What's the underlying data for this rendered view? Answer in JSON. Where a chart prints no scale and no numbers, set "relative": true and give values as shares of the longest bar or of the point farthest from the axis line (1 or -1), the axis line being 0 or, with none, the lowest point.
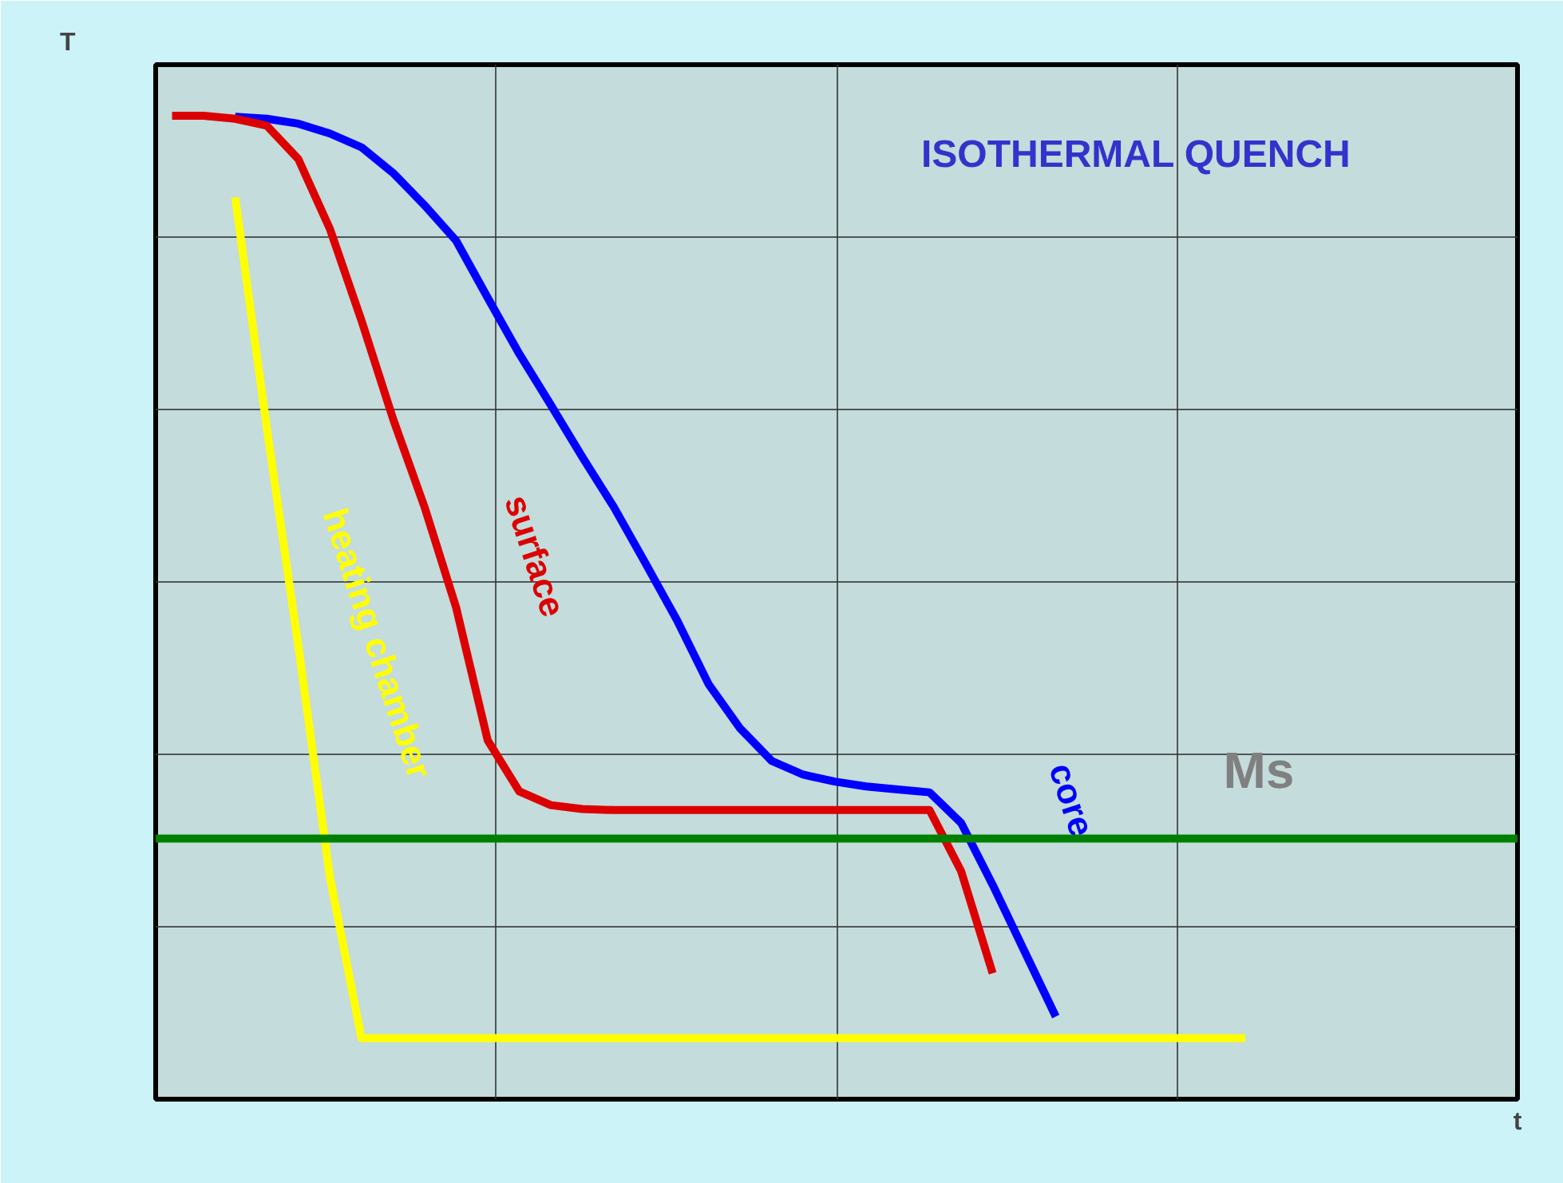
{
  "chart_data": {
    "type": "line",
    "title": "ISOTHERMAL QUENCH",
    "annotations": [
      "t"
    ],
    "ylabel": "T",
    "relative": true,
    "grid": true,
    "legend": false,
    "categories": [
      null,
      null,
      null,
      null,
      null,
      null,
      null,
      null,
      null,
      null,
      null,
      null,
      null,
      null,
      null,
      null,
      null,
      null,
      null,
      null,
      null,
      null,
      null,
      null,
      null,
      null,
      null,
      null,
      null,
      null,
      null,
      null,
      null,
      null,
      null
    ],
    "series": [
      {
        "name": "core",
        "color": "#0000ff",
        "values": [
          null,
          null,
          0.999,
          0.997,
          0.992,
          0.982,
          0.968,
          0.942,
          0.909,
          0.873,
          0.815,
          0.758,
          0.706,
          0.653,
          0.602,
          0.545,
          0.487,
          0.422,
          0.377,
          0.344,
          0.33,
          0.323,
          0.318,
          0.315,
          0.312,
          0.281,
          0.218,
          0.151,
          0.084,
          null,
          null,
          null,
          null,
          null,
          null
        ]
      },
      {
        "name": "surface",
        "color": "#dd0000",
        "values": [
          1,
          1,
          0.997,
          0.99,
          0.956,
          0.885,
          0.792,
          0.692,
          0.602,
          0.5,
          0.365,
          0.313,
          0.299,
          0.295,
          0.294,
          0.294,
          0.294,
          0.294,
          0.294,
          0.294,
          0.294,
          0.294,
          0.294,
          0.294,
          0.294,
          0.232,
          0.128,
          null,
          null,
          null,
          null,
          null,
          null,
          null,
          null
        ]
      },
      {
        "name": "heating chamber",
        "color": "#ffff00",
        "values": [
          null,
          null,
          0.917,
          0.683,
          0.461,
          0.226,
          0.062,
          0.062,
          0.062,
          0.062,
          0.062,
          0.062,
          0.062,
          0.062,
          0.062,
          0.062,
          0.062,
          0.062,
          0.062,
          0.062,
          0.062,
          0.062,
          0.062,
          0.062,
          0.062,
          0.062,
          0.062,
          0.062,
          0.062,
          0.062,
          0.062,
          0.062,
          0.062,
          0.062,
          0.062
        ]
      }
    ],
    "ref_lines": [
      {
        "axis": "y",
        "value": 0.265,
        "label": "Ms",
        "color": "#008000"
      }
    ]
  }
}
